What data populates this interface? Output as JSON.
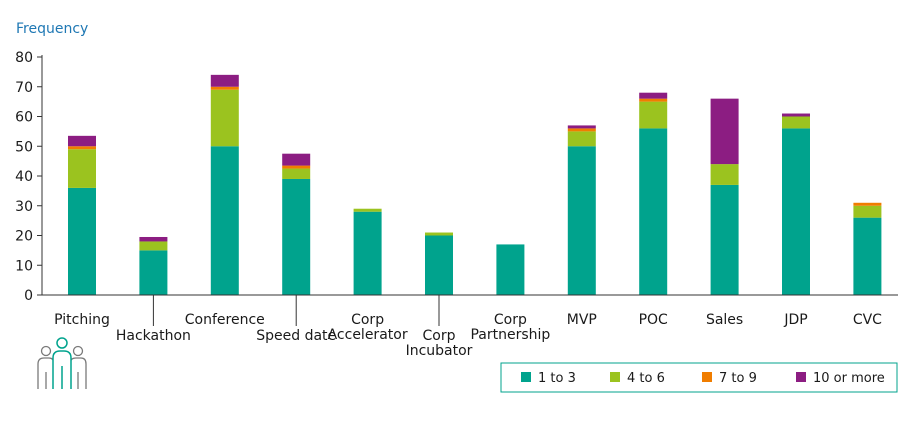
{
  "chart_data": {
    "type": "bar",
    "stacked": true,
    "ylabel": "Frequency",
    "xlabel": "",
    "ylim": [
      0,
      80
    ],
    "yticks": [
      0,
      10,
      20,
      30,
      40,
      50,
      60,
      70,
      80
    ],
    "grid": false,
    "categories": [
      [
        "Pitching"
      ],
      [
        "Hackathon"
      ],
      [
        "Conference"
      ],
      [
        "Speed date"
      ],
      [
        "Corp",
        "Accelerator"
      ],
      [
        "Corp",
        "Incubator"
      ],
      [
        "Corp",
        "Partnership"
      ],
      [
        "MVP"
      ],
      [
        "POC"
      ],
      [
        "Sales"
      ],
      [
        "JDP"
      ],
      [
        "CVC"
      ]
    ],
    "series": [
      {
        "name": "1 to 3",
        "color": "#00a38d",
        "values": [
          36,
          15,
          50,
          39,
          28,
          20,
          17,
          50,
          56,
          37,
          56,
          26
        ]
      },
      {
        "name": "4 to 6",
        "color": "#9bc31f",
        "values": [
          13,
          3,
          19,
          3.5,
          1,
          1,
          0,
          5,
          9,
          7,
          4,
          4
        ]
      },
      {
        "name": "7 to 9",
        "color": "#f07d00",
        "values": [
          1,
          0,
          1,
          1,
          0,
          0,
          0,
          1,
          1,
          0,
          0,
          1
        ]
      },
      {
        "name": "10 or more",
        "color": "#8c1d82",
        "values": [
          3.5,
          1.5,
          4,
          4,
          0,
          0,
          0,
          1,
          2,
          22,
          1,
          0
        ]
      }
    ],
    "legend_position": "bottom-right"
  },
  "colors": {
    "axis": "#333333",
    "legend_border": "#00a38d",
    "icon": "#7a7a7a",
    "icon_accent": "#00a38d"
  }
}
